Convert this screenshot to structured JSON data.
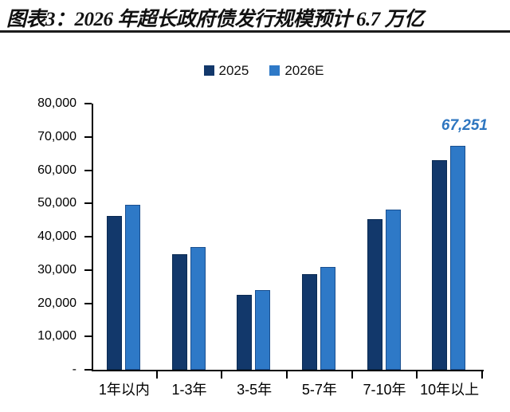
{
  "figure": {
    "title": "图表3：2026 年超长政府债发行规模预计 6.7 万亿"
  },
  "chart_data": {
    "type": "bar",
    "title": "图表3：2026 年超长政府债发行规模预计 6.7 万亿",
    "categories": [
      "1年以内",
      "1-3年",
      "3-5年",
      "5-7年",
      "7-10年",
      "10年以上"
    ],
    "series": [
      {
        "name": "2025",
        "color": "#12386B",
        "border": "#0A2A52",
        "values": [
          46200,
          34800,
          22400,
          28800,
          45200,
          63100
        ]
      },
      {
        "name": "2026E",
        "color": "#2E79C7",
        "border": "#1A4F8F",
        "values": [
          49700,
          36900,
          24000,
          31000,
          48200,
          67251
        ]
      }
    ],
    "xlabel": "",
    "ylabel": "",
    "ylim": [
      0,
      80000
    ],
    "ytick_step": 10000,
    "ytick_labels": [
      "-",
      "10,000",
      "20,000",
      "30,000",
      "40,000",
      "50,000",
      "60,000",
      "70,000",
      "80,000"
    ],
    "grid": false,
    "legend_position": "top-center",
    "annotation": {
      "text": "67,251",
      "series": "2026E",
      "category": "10年以上",
      "value": 67251,
      "color": "#2E76C0"
    }
  }
}
